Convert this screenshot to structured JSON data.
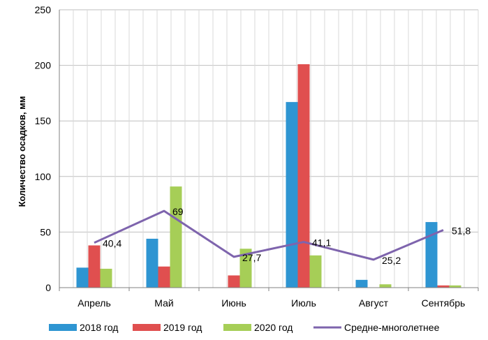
{
  "chart_data": {
    "type": "bar",
    "title": "",
    "xlabel": "",
    "ylabel": "Количество осадков, мм",
    "ylim": [
      0,
      250
    ],
    "yticks": [
      0,
      50,
      100,
      150,
      200,
      250
    ],
    "grid": true,
    "legend_position": "bottom",
    "categories": [
      "Апрель",
      "Май",
      "Июнь",
      "Июль",
      "Август",
      "Сентябрь"
    ],
    "series": [
      {
        "name": "2018 год",
        "type": "bar",
        "color": "#2e95d2",
        "values": [
          18,
          44,
          0,
          167,
          7,
          59
        ]
      },
      {
        "name": "2019 год",
        "type": "bar",
        "color": "#e04f4f",
        "values": [
          38,
          19,
          11,
          201,
          0,
          2
        ]
      },
      {
        "name": "2020 год",
        "type": "bar",
        "color": "#a6ce57",
        "values": [
          17,
          91,
          35,
          29,
          3,
          2
        ]
      },
      {
        "name": "Средне-многолетнее",
        "type": "line",
        "color": "#7e64ad",
        "values": [
          40.4,
          69,
          27.7,
          41.1,
          25.2,
          51.8
        ],
        "labels": [
          "40,4",
          "69",
          "27,7",
          "41,1",
          "25,2",
          "51,8"
        ]
      }
    ]
  }
}
